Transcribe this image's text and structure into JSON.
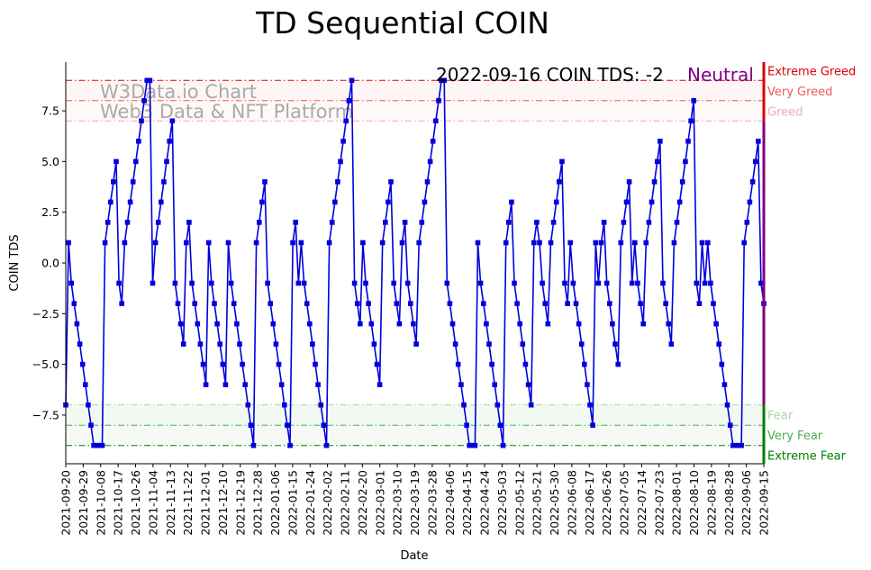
{
  "chart_data": {
    "type": "line",
    "title": "TD Sequential COIN",
    "xlabel": "Date",
    "ylabel": "COIN TDS",
    "ylim": [
      -9.9,
      9.9
    ],
    "yticks": [
      -7.5,
      -5.0,
      -2.5,
      0.0,
      2.5,
      5.0,
      7.5
    ],
    "ytick_labels": [
      "−7.5",
      "−5.0",
      "−2.5",
      "0.0",
      "2.5",
      "5.0",
      "7.5"
    ],
    "start_date": "2021-09-20",
    "xticks": [
      "2021-09-20",
      "2021-09-29",
      "2021-10-08",
      "2021-10-17",
      "2021-10-26",
      "2021-11-04",
      "2021-11-13",
      "2021-11-22",
      "2021-12-01",
      "2021-12-10",
      "2021-12-19",
      "2021-12-28",
      "2022-01-06",
      "2022-01-15",
      "2022-01-24",
      "2022-02-02",
      "2022-02-11",
      "2022-02-20",
      "2022-03-01",
      "2022-03-10",
      "2022-03-19",
      "2022-03-28",
      "2022-04-06",
      "2022-04-15",
      "2022-04-24",
      "2022-05-03",
      "2022-05-12",
      "2022-05-21",
      "2022-05-30",
      "2022-06-08",
      "2022-06-17",
      "2022-06-26",
      "2022-07-05",
      "2022-07-14",
      "2022-07-23",
      "2022-08-01",
      "2022-08-10",
      "2022-08-19",
      "2022-08-28",
      "2022-09-06",
      "2022-09-15"
    ],
    "series": [
      {
        "name": "COIN TDS",
        "color": "#0000dd",
        "marker": "square",
        "values": [
          -7,
          1,
          -1,
          -2,
          -3,
          -4,
          -5,
          -6,
          -7,
          -8,
          -9,
          -9,
          -9,
          -9,
          1,
          2,
          3,
          4,
          5,
          -1,
          -2,
          1,
          2,
          3,
          4,
          5,
          6,
          7,
          8,
          9,
          9,
          -1,
          1,
          2,
          3,
          4,
          5,
          6,
          7,
          -1,
          -2,
          -3,
          -4,
          1,
          2,
          -1,
          -2,
          -3,
          -4,
          -5,
          -6,
          1,
          -1,
          -2,
          -3,
          -4,
          -5,
          -6,
          1,
          -1,
          -2,
          -3,
          -4,
          -5,
          -6,
          -7,
          -8,
          -9,
          1,
          2,
          3,
          4,
          -1,
          -2,
          -3,
          -4,
          -5,
          -6,
          -7,
          -8,
          -9,
          1,
          2,
          -1,
          1,
          -1,
          -2,
          -3,
          -4,
          -5,
          -6,
          -7,
          -8,
          -9,
          1,
          2,
          3,
          4,
          5,
          6,
          7,
          8,
          9,
          -1,
          -2,
          -3,
          1,
          -1,
          -2,
          -3,
          -4,
          -5,
          -6,
          1,
          2,
          3,
          4,
          -1,
          -2,
          -3,
          1,
          2,
          -1,
          -2,
          -3,
          -4,
          1,
          2,
          3,
          4,
          5,
          6,
          7,
          8,
          9,
          9,
          -1,
          -2,
          -3,
          -4,
          -5,
          -6,
          -7,
          -8,
          -9,
          -9,
          -9,
          1,
          -1,
          -2,
          -3,
          -4,
          -5,
          -6,
          -7,
          -8,
          -9,
          1,
          2,
          3,
          -1,
          -2,
          -3,
          -4,
          -5,
          -6,
          -7,
          1,
          2,
          1,
          -1,
          -2,
          -3,
          1,
          2,
          3,
          4,
          5,
          -1,
          -2,
          1,
          -1,
          -2,
          -3,
          -4,
          -5,
          -6,
          -7,
          -8,
          1,
          -1,
          1,
          2,
          -1,
          -2,
          -3,
          -4,
          -5,
          1,
          2,
          3,
          4,
          -1,
          1,
          -1,
          -2,
          -3,
          1,
          2,
          3,
          4,
          5,
          6,
          -1,
          -2,
          -3,
          -4,
          1,
          2,
          3,
          4,
          5,
          6,
          7,
          8,
          -1,
          -2,
          1,
          -1,
          1,
          -1,
          -2,
          -3,
          -4,
          -5,
          -6,
          -7,
          -8,
          -9,
          -9,
          -9,
          -9,
          1,
          2,
          3,
          4,
          5,
          6,
          -1,
          -2
        ]
      }
    ],
    "reference_lines": [
      {
        "label": "Extreme Greed",
        "value": 9,
        "color": "#dd0000"
      },
      {
        "label": "Very Greed",
        "value": 8,
        "color": "#f05a5a"
      },
      {
        "label": "Greed",
        "value": 7,
        "color": "#f5aaaa"
      },
      {
        "label": "Fear",
        "value": -7,
        "color": "#a8d8a0"
      },
      {
        "label": "Very Fear",
        "value": -8,
        "color": "#4caf50"
      },
      {
        "label": "Extreme Fear",
        "value": -9,
        "color": "#008000"
      }
    ],
    "annotation": {
      "date_label": "2022-09-16 COIN TDS: -2",
      "status_label": "Neutral",
      "status_color": "#800080"
    },
    "watermark": {
      "line1": "W3Data.io Chart",
      "line2": "Web3 Data & NFT Platform"
    }
  }
}
